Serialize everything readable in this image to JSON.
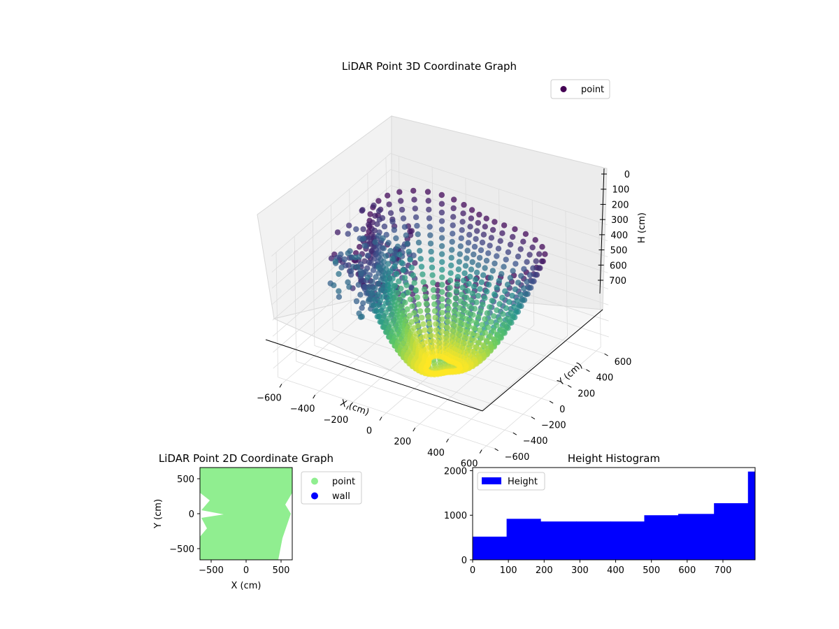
{
  "colors": {
    "viridis_dark": "#440154",
    "viridis_blue": "#31688e",
    "viridis_teal": "#21918c",
    "viridis_green": "#5ec962",
    "viridis_yellow": "#fde725",
    "point_2d": "#90ee90",
    "wall_2d": "#0000ff",
    "histogram": "#0000ff"
  },
  "chart_data": [
    {
      "type": "scatter",
      "title": "LiDAR Point 3D Coordinate Graph",
      "xlabel": "X (cm)",
      "ylabel": "Y (cm)",
      "zlabel": "H (cm)",
      "x_ticks": [
        "−600",
        "−400",
        "−200",
        "0",
        "200",
        "400",
        "600"
      ],
      "y_ticks": [
        "−600",
        "−400",
        "−200",
        "0",
        "200",
        "400",
        "600"
      ],
      "z_ticks": [
        "0",
        "100",
        "200",
        "300",
        "400",
        "500",
        "600",
        "700"
      ],
      "xlim": [
        -650,
        650
      ],
      "ylim": [
        -650,
        650
      ],
      "zlim": [
        0,
        780
      ],
      "z_inverted": true,
      "colormap": "viridis",
      "legend": {
        "position": "top-right",
        "entries": [
          "point"
        ]
      },
      "grid": true
    },
    {
      "type": "scatter",
      "title": "LiDAR Point 2D Coordinate Graph",
      "xlabel": "X (cm)",
      "ylabel": "Y (cm)",
      "x_ticks": [
        "−500",
        "0",
        "500"
      ],
      "y_ticks": [
        "500",
        "0",
        "−500"
      ],
      "xlim": [
        -660,
        660
      ],
      "ylim": [
        -660,
        660
      ],
      "series": [
        {
          "name": "point",
          "color": "#90ee90"
        },
        {
          "name": "wall",
          "color": "#0000ff"
        }
      ],
      "legend": {
        "position": "outside-right"
      },
      "grid": false
    },
    {
      "type": "bar",
      "title": "Height Histogram",
      "x_ticks": [
        "0",
        "100",
        "200",
        "300",
        "400",
        "500",
        "600",
        "700"
      ],
      "y_ticks": [
        "0",
        "1000",
        "2000"
      ],
      "xlim": [
        0,
        790
      ],
      "ylim": [
        0,
        2070
      ],
      "bin_edges": [
        0,
        95,
        190,
        290,
        385,
        480,
        575,
        675,
        770,
        790
      ],
      "series": [
        {
          "name": "Height",
          "color": "#0000ff",
          "values": [
            520,
            920,
            860,
            860,
            860,
            1000,
            1030,
            1270,
            1980
          ]
        }
      ],
      "legend": {
        "position": "top-left"
      },
      "grid": false
    }
  ]
}
